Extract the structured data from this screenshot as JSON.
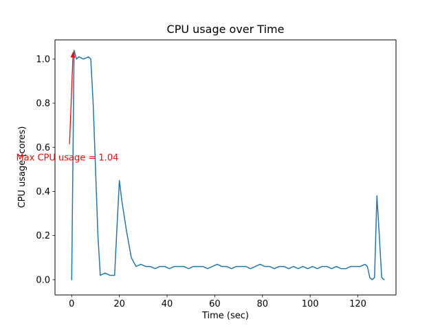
{
  "chart_data": {
    "type": "line",
    "title": "CPU usage over Time",
    "xlabel": "Time (sec)",
    "ylabel": "CPU usage (cores)",
    "xlim": [
      -7,
      136
    ],
    "ylim": [
      -0.069,
      1.087
    ],
    "xticks": [
      0,
      20,
      40,
      60,
      80,
      100,
      120
    ],
    "yticks": [
      0.0,
      0.2,
      0.4,
      0.6,
      0.8,
      1.0
    ],
    "grid": false,
    "legend": "none",
    "line_color": "#1f77b4",
    "series": [
      {
        "name": "cpu_usage",
        "x": [
          0,
          1,
          2,
          3,
          5,
          7,
          8,
          9,
          10,
          11,
          12,
          14,
          16,
          18,
          19,
          20,
          21,
          23,
          25,
          27,
          29,
          31,
          33,
          35,
          37,
          39,
          41,
          43,
          45,
          47,
          49,
          51,
          53,
          55,
          57,
          59,
          61,
          63,
          65,
          67,
          69,
          71,
          73,
          75,
          77,
          79,
          81,
          83,
          85,
          87,
          89,
          91,
          93,
          95,
          97,
          99,
          101,
          103,
          105,
          107,
          109,
          111,
          113,
          115,
          117,
          119,
          121,
          123,
          124,
          125,
          126,
          127,
          128,
          129,
          130,
          131
        ],
        "y": [
          0.0,
          1.04,
          1.0,
          1.01,
          1.0,
          1.01,
          1.0,
          0.8,
          0.5,
          0.2,
          0.02,
          0.03,
          0.02,
          0.02,
          0.24,
          0.45,
          0.36,
          0.22,
          0.1,
          0.06,
          0.07,
          0.06,
          0.06,
          0.05,
          0.06,
          0.06,
          0.05,
          0.06,
          0.06,
          0.06,
          0.05,
          0.06,
          0.06,
          0.06,
          0.05,
          0.06,
          0.07,
          0.06,
          0.06,
          0.05,
          0.06,
          0.06,
          0.06,
          0.05,
          0.06,
          0.07,
          0.06,
          0.06,
          0.05,
          0.06,
          0.06,
          0.05,
          0.06,
          0.05,
          0.06,
          0.05,
          0.06,
          0.05,
          0.06,
          0.06,
          0.05,
          0.06,
          0.05,
          0.05,
          0.06,
          0.06,
          0.06,
          0.07,
          0.06,
          0.01,
          0.0,
          0.01,
          0.38,
          0.2,
          0.01,
          0.0
        ]
      }
    ],
    "annotation": {
      "text": "Max CPU usage = 1.04",
      "color": "#ff0000",
      "text_xy": [
        -23.3,
        0.54
      ],
      "arrow_start": [
        -0.9,
        0.615
      ],
      "arrow_end": [
        0.6,
        1.035
      ]
    }
  }
}
